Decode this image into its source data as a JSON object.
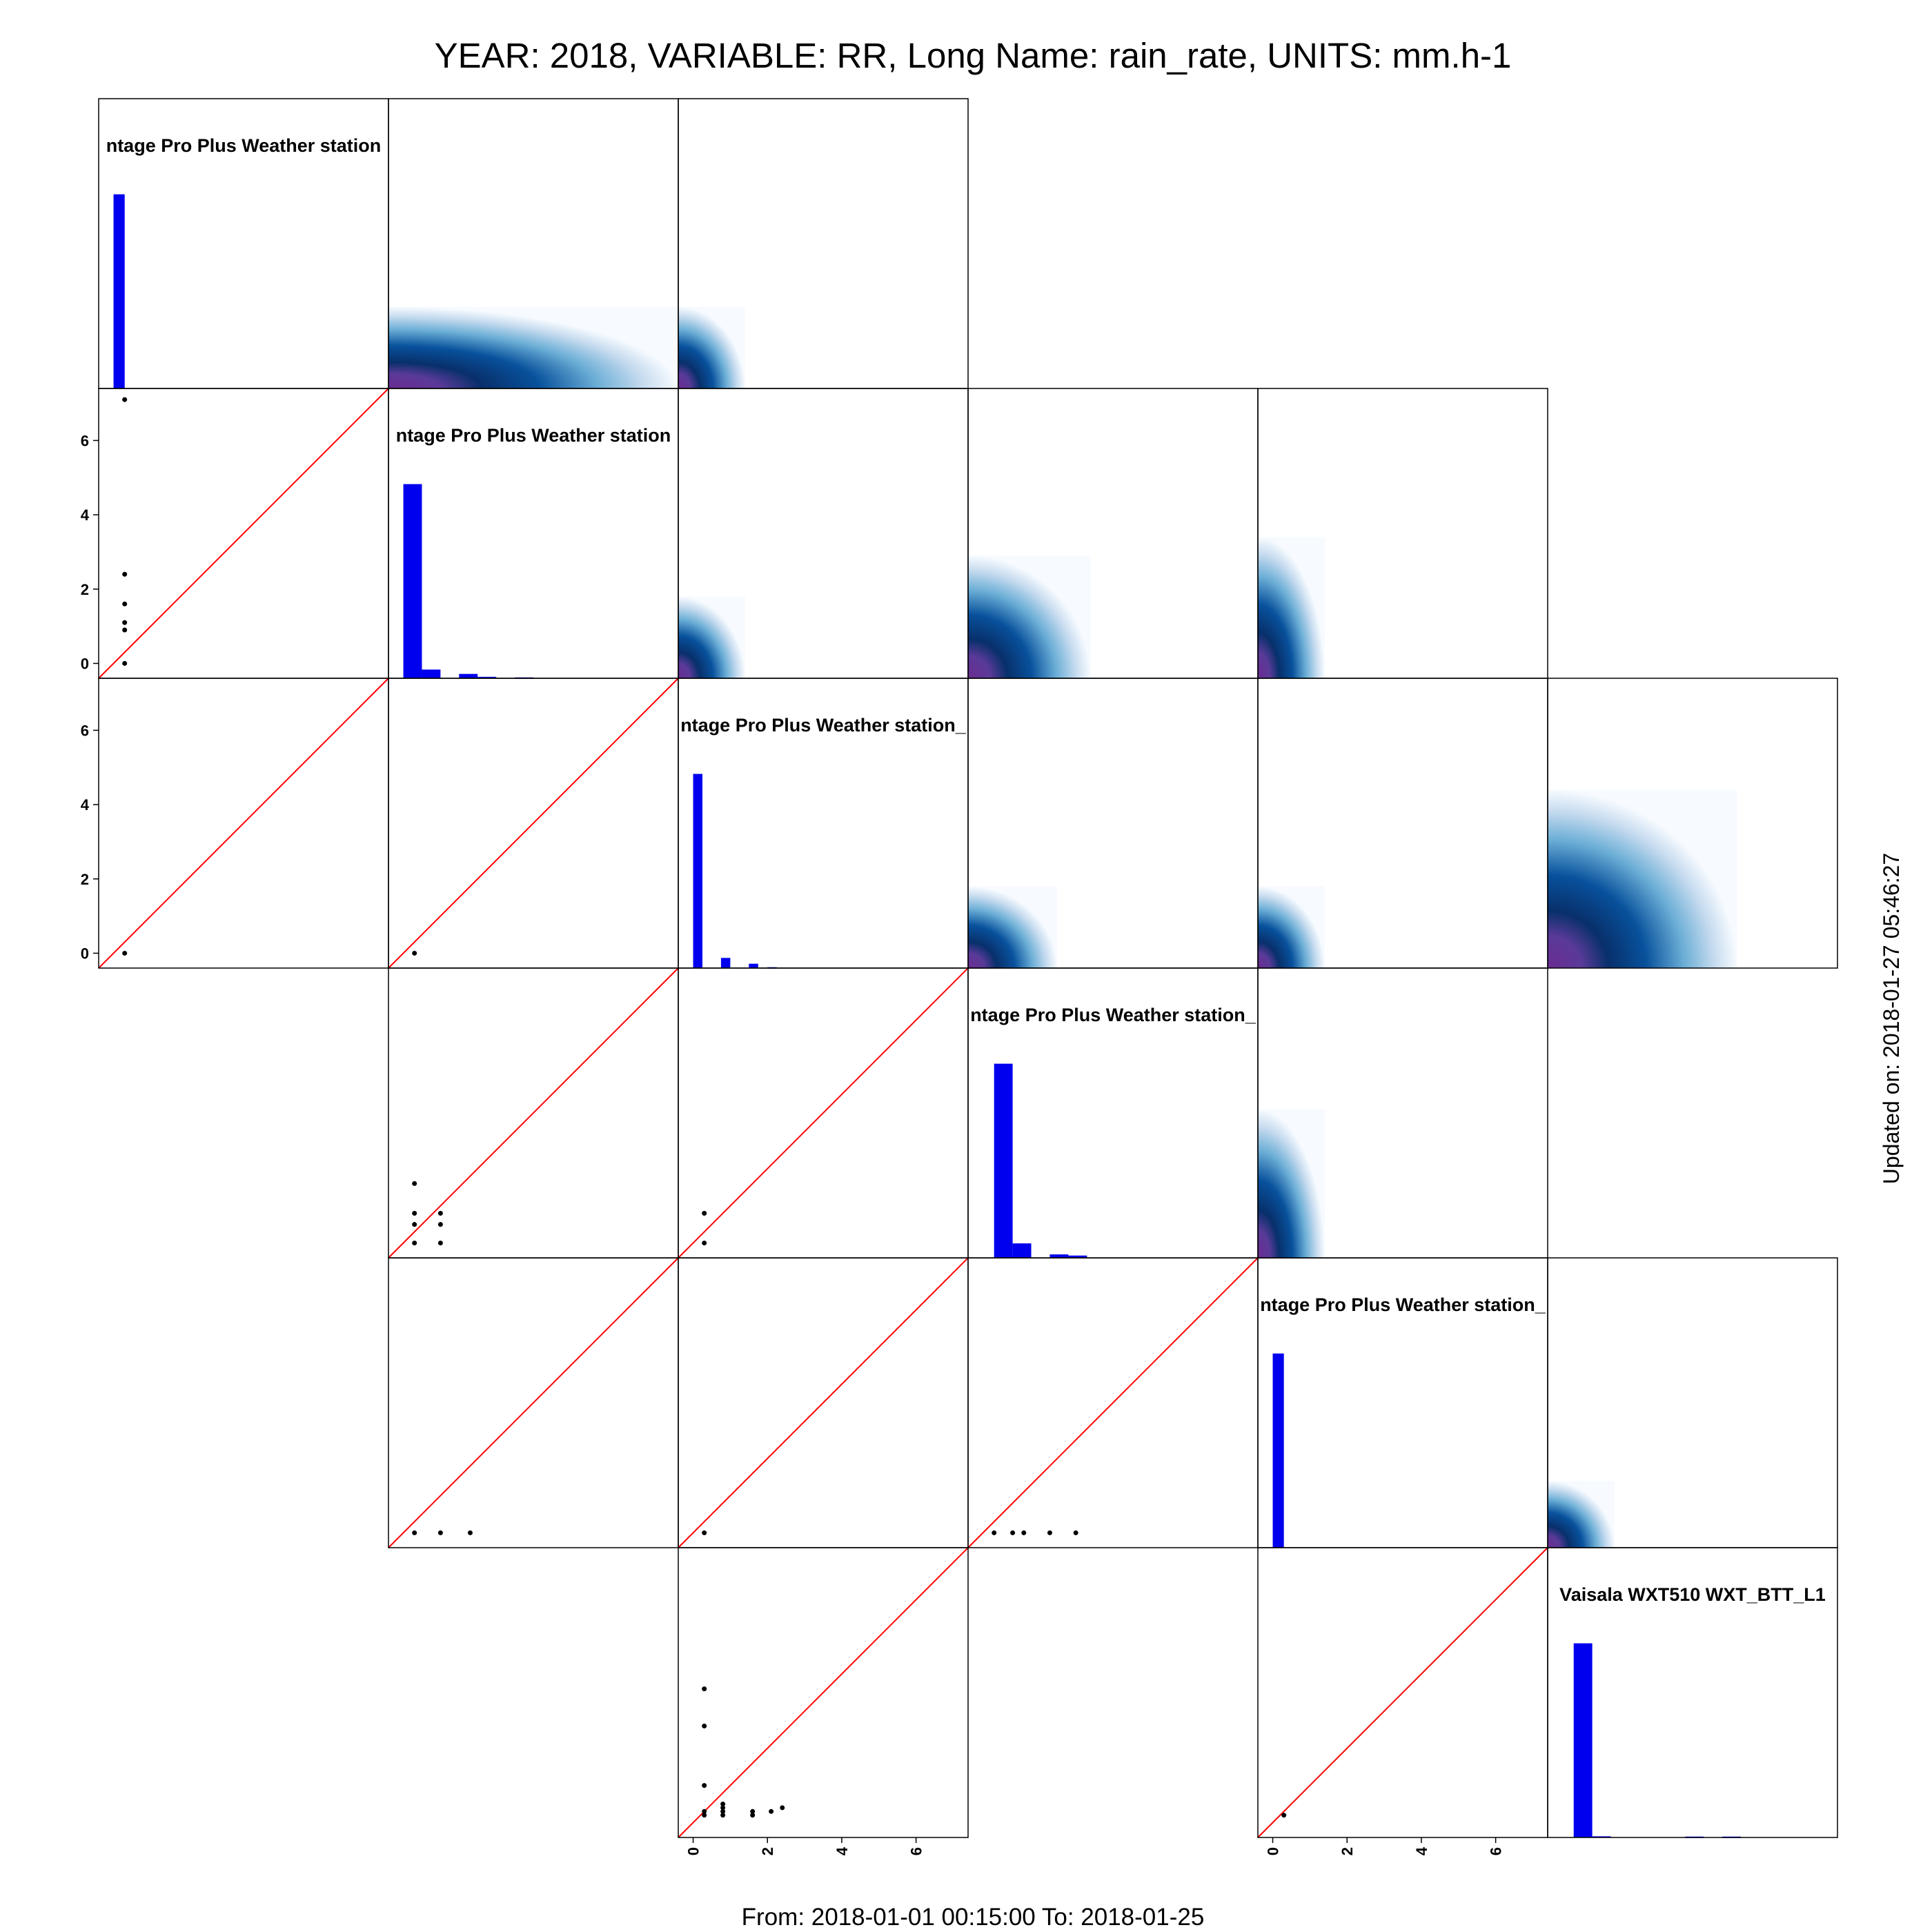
{
  "title": "YEAR: 2018, VARIABLE: RR, Long Name: rain_rate, UNITS: mm.h-1",
  "footer": "From: 2018-01-01 00:15:00 To: 2018-01-25",
  "updated": "Updated on: 2018-01-27 05:46:27",
  "colors": {
    "histogram": "#0000ee",
    "identity_line": "#ff0000",
    "density_low": "#deebf7",
    "density_mid": "#08519c",
    "density_high": "#6a2c91"
  },
  "chart_data": {
    "type": "scatter-matrix",
    "axis_range": [
      -0.4,
      7.4
    ],
    "ticks": [
      "0",
      "2",
      "4",
      "6"
    ],
    "diagonal": [
      {
        "row": 0,
        "col": 0,
        "label": "ntage Pro Plus Weather station",
        "bins": [
          0.0,
          0.3
        ],
        "heights": [
          0.67
        ]
      },
      {
        "row": 1,
        "col": 1,
        "label": "ntage Pro Plus Weather station",
        "bins": [
          0.0,
          0.5,
          1.0,
          1.5,
          2.0,
          2.5,
          3.0,
          3.5
        ],
        "heights": [
          0.67,
          0.03,
          0.0,
          0.015,
          0.005,
          0.0,
          0.003,
          0.0
        ]
      },
      {
        "row": 2,
        "col": 2,
        "label": "ntage Pro Plus Weather station_",
        "bins": [
          0.0,
          0.25,
          0.5,
          0.75,
          1.0,
          1.25,
          1.5,
          1.75,
          2.0,
          2.25,
          2.5
        ],
        "heights": [
          0.67,
          0.0,
          0.0,
          0.035,
          0.0,
          0.0,
          0.015,
          0.0,
          0.003,
          0.0,
          0.0
        ]
      },
      {
        "row": 3,
        "col": 3,
        "label": "ntage Pro Plus Weather station_",
        "bins": [
          0.3,
          0.8,
          1.3,
          1.8,
          2.3,
          2.8
        ],
        "heights": [
          0.67,
          0.05,
          0.0,
          0.012,
          0.008
        ]
      },
      {
        "row": 4,
        "col": 4,
        "label": "ntage Pro Plus Weather station_",
        "bins": [
          0.0,
          0.3
        ],
        "heights": [
          0.67
        ]
      },
      {
        "row": 5,
        "col": 5,
        "label": "Vaisala WXT510 WXT_BTT_L1",
        "bins": [
          0.3,
          0.8,
          1.3,
          1.8,
          2.3,
          2.8,
          3.3,
          3.8,
          4.3
        ],
        "heights": [
          0.67,
          0.004,
          0.0,
          0.0,
          0.0,
          0.0,
          0.003,
          0.0,
          0.003
        ]
      }
    ],
    "density_panels": [
      {
        "row": 0,
        "col": 1,
        "x_extent": 7.4,
        "y_extent": 1.8
      },
      {
        "row": 0,
        "col": 2,
        "x_extent": 1.4,
        "y_extent": 1.8
      },
      {
        "row": 1,
        "col": 2,
        "x_extent": 1.4,
        "y_extent": 1.8
      },
      {
        "row": 1,
        "col": 3,
        "x_extent": 2.9,
        "y_extent": 2.9
      },
      {
        "row": 1,
        "col": 4,
        "x_extent": 1.4,
        "y_extent": 3.4
      },
      {
        "row": 2,
        "col": 3,
        "x_extent": 2.0,
        "y_extent": 1.8
      },
      {
        "row": 2,
        "col": 4,
        "x_extent": 1.4,
        "y_extent": 1.8
      },
      {
        "row": 2,
        "col": 5,
        "x_extent": 4.7,
        "y_extent": 4.4
      },
      {
        "row": 3,
        "col": 4,
        "x_extent": 1.4,
        "y_extent": 3.6
      },
      {
        "row": 4,
        "col": 5,
        "x_extent": 1.4,
        "y_extent": 1.4
      }
    ],
    "scatter_panels": [
      {
        "row": 1,
        "col": 0,
        "points": [
          [
            0.3,
            7.1
          ],
          [
            0.3,
            2.4
          ],
          [
            0.3,
            1.6
          ],
          [
            0.3,
            1.1
          ],
          [
            0.3,
            0.9
          ],
          [
            0.3,
            0.0
          ]
        ]
      },
      {
        "row": 2,
        "col": 0,
        "points": [
          [
            0.3,
            0.0
          ]
        ]
      },
      {
        "row": 2,
        "col": 1,
        "points": [
          [
            0.3,
            0.0
          ]
        ]
      },
      {
        "row": 3,
        "col": 1,
        "points": [
          [
            0.3,
            1.6
          ],
          [
            0.3,
            0.8
          ],
          [
            0.3,
            0.5
          ],
          [
            0.3,
            0.0
          ],
          [
            1.0,
            0.8
          ],
          [
            1.0,
            0.5
          ],
          [
            1.0,
            0.0
          ]
        ]
      },
      {
        "row": 3,
        "col": 2,
        "points": [
          [
            0.3,
            0.8
          ],
          [
            0.3,
            0.0
          ]
        ]
      },
      {
        "row": 4,
        "col": 1,
        "points": [
          [
            0.3,
            0.0
          ],
          [
            1.0,
            0.0
          ],
          [
            1.8,
            0.0
          ]
        ]
      },
      {
        "row": 4,
        "col": 2,
        "points": [
          [
            0.3,
            0.0
          ]
        ]
      },
      {
        "row": 4,
        "col": 3,
        "points": [
          [
            0.3,
            0.0
          ],
          [
            0.8,
            0.0
          ],
          [
            1.1,
            0.0
          ],
          [
            1.8,
            0.0
          ],
          [
            2.5,
            0.0
          ]
        ]
      },
      {
        "row": 5,
        "col": 2,
        "points": [
          [
            0.3,
            3.6
          ],
          [
            0.3,
            2.6
          ],
          [
            0.3,
            1.0
          ],
          [
            0.3,
            0.3
          ],
          [
            0.3,
            0.2
          ],
          [
            0.8,
            0.5
          ],
          [
            0.8,
            0.4
          ],
          [
            0.8,
            0.3
          ],
          [
            0.8,
            0.2
          ],
          [
            1.6,
            0.3
          ],
          [
            1.6,
            0.2
          ],
          [
            2.1,
            0.3
          ],
          [
            2.4,
            0.4
          ]
        ]
      },
      {
        "row": 5,
        "col": 4,
        "points": [
          [
            0.3,
            0.2
          ]
        ]
      }
    ],
    "y_axis_rows": [
      1,
      2
    ],
    "x_axis_cols": [
      2,
      4
    ]
  }
}
